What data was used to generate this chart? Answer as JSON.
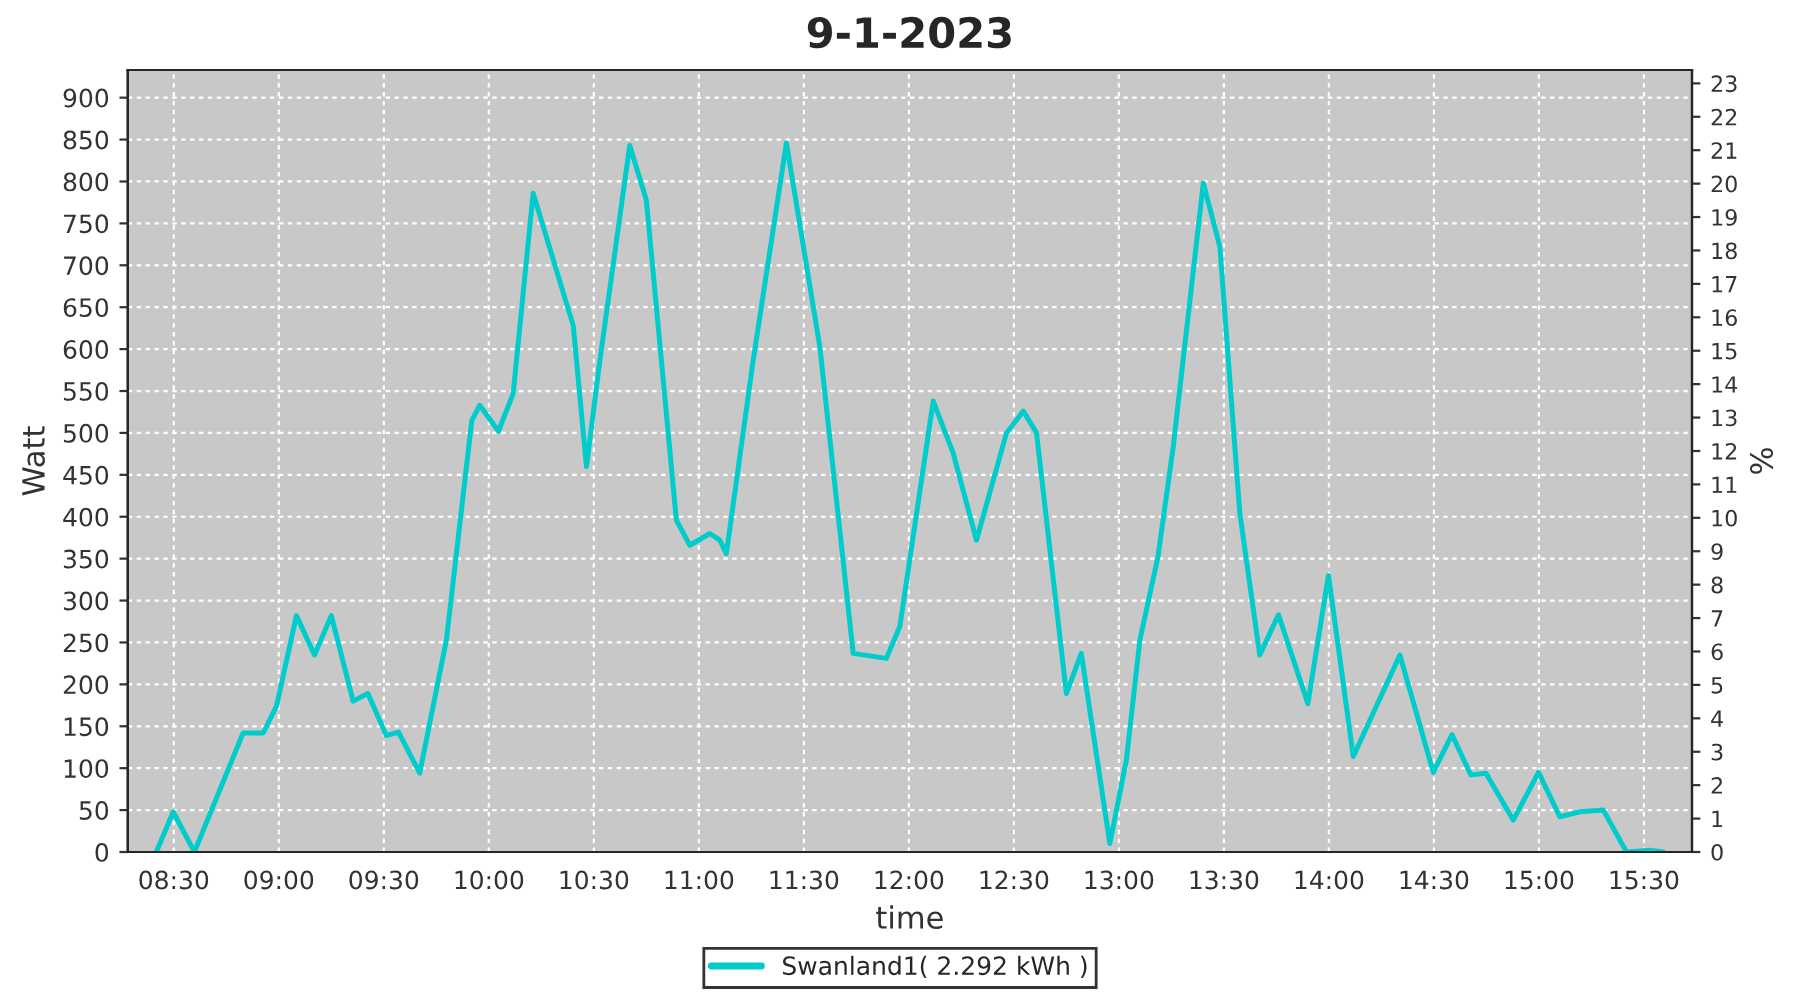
{
  "chart_data": {
    "type": "line",
    "title": "9-1-2023",
    "xlabel": "time",
    "ylabel": "Watt",
    "y2label": "%",
    "x": [
      8.417,
      8.497,
      8.598,
      8.83,
      8.926,
      8.989,
      9.084,
      9.17,
      9.25,
      9.354,
      9.424,
      9.512,
      9.57,
      9.671,
      9.798,
      9.919,
      9.957,
      10.046,
      10.116,
      10.211,
      10.29,
      10.322,
      10.402,
      10.465,
      10.529,
      10.671,
      10.75,
      10.893,
      10.957,
      11.052,
      11.1,
      11.131,
      11.259,
      11.417,
      11.576,
      11.735,
      11.893,
      11.957,
      12.116,
      12.211,
      12.322,
      12.465,
      12.545,
      12.608,
      12.75,
      12.821,
      12.957,
      13.036,
      13.1,
      13.186,
      13.259,
      13.402,
      13.481,
      13.576,
      13.671,
      13.76,
      13.9,
      13.998,
      14.116,
      14.338,
      14.497,
      14.586,
      14.676,
      14.748,
      14.878,
      14.998,
      15.1,
      15.195,
      15.307,
      15.417,
      15.529,
      15.592
    ],
    "series": [
      {
        "name": "Swanland1( 2.292 kWh )",
        "color": "#00cccc",
        "values": [
          0,
          48,
          0,
          142,
          142,
          174,
          282,
          235,
          282,
          180,
          189,
          139,
          143,
          94,
          253,
          515,
          533,
          502,
          547,
          786,
          null,
          null,
          628,
          460,
          587,
          843,
          778,
          396,
          366,
          380,
          372,
          356,
          587,
          846,
          603,
          237,
          231,
          269,
          538,
          476,
          372,
          500,
          526,
          500,
          189,
          237,
          10,
          110,
          253,
          352,
          484,
          798,
          722,
          404,
          235,
          283,
          177,
          330,
          114,
          235,
          95,
          140,
          92,
          94,
          38,
          95,
          42,
          48,
          50,
          0,
          2,
          0
        ]
      }
    ],
    "xlim": [
      8.281,
      15.729
    ],
    "xticks": [
      {
        "value": 8.5,
        "label": "08:30"
      },
      {
        "value": 9,
        "label": "09:00"
      },
      {
        "value": 9.5,
        "label": "09:30"
      },
      {
        "value": 10,
        "label": "10:00"
      },
      {
        "value": 10.5,
        "label": "10:30"
      },
      {
        "value": 11,
        "label": "11:00"
      },
      {
        "value": 11.5,
        "label": "11:30"
      },
      {
        "value": 12,
        "label": "12:00"
      },
      {
        "value": 12.5,
        "label": "12:30"
      },
      {
        "value": 13,
        "label": "13:00"
      },
      {
        "value": 13.5,
        "label": "13:30"
      },
      {
        "value": 14,
        "label": "14:00"
      },
      {
        "value": 14.5,
        "label": "14:30"
      },
      {
        "value": 15,
        "label": "15:00"
      },
      {
        "value": 15.5,
        "label": "15:30"
      }
    ],
    "ylim": [
      0,
      933
    ],
    "yticks": [
      0,
      50,
      100,
      150,
      200,
      250,
      300,
      350,
      400,
      450,
      500,
      550,
      600,
      650,
      700,
      750,
      800,
      850,
      900
    ],
    "y2lim": [
      0,
      23.4
    ],
    "y2ticks": [
      0,
      1,
      2,
      3,
      4,
      5,
      6,
      7,
      8,
      9,
      10,
      11,
      12,
      13,
      14,
      15,
      16,
      17,
      18,
      19,
      20,
      21,
      22,
      23
    ],
    "grid": true,
    "legend": "bottom",
    "marker": "none",
    "line_style": "solid"
  }
}
